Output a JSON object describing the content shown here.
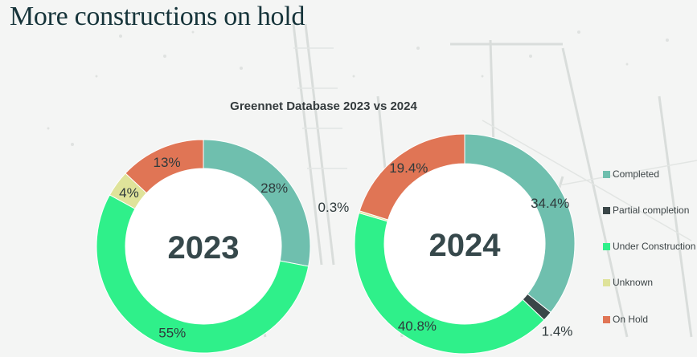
{
  "page": {
    "title": "More constructions on hold"
  },
  "colors": {
    "completed": "#6fbfae",
    "partial": "#3a4648",
    "under_construction": "#2ff08a",
    "unknown": "#dfe39a",
    "on_hold": "#e07555"
  },
  "legend": [
    {
      "key": "completed",
      "label": "Completed"
    },
    {
      "key": "partial",
      "label": "Partial completion"
    },
    {
      "key": "under_construction",
      "label": "Under Construction"
    },
    {
      "key": "unknown",
      "label": "Unknown"
    },
    {
      "key": "on_hold",
      "label": "On Hold"
    }
  ],
  "chart_data": {
    "type": "pie",
    "variant": "donut",
    "title": "Greennet Database 2023 vs 2024",
    "categories": [
      "Completed",
      "Partial completion",
      "Under Construction",
      "Unknown",
      "On Hold"
    ],
    "series": [
      {
        "name": "2023",
        "center_label": "2023",
        "values": [
          28,
          0,
          55,
          4,
          13
        ],
        "labels": [
          "28%",
          "",
          "55%",
          "4%",
          "13%"
        ]
      },
      {
        "name": "2024",
        "center_label": "2024",
        "values": [
          34.4,
          1.4,
          40.8,
          0.3,
          19.4
        ],
        "labels": [
          "34.4%",
          "1.4%",
          "40.8%",
          "0.3%",
          "19.4%"
        ]
      }
    ]
  }
}
